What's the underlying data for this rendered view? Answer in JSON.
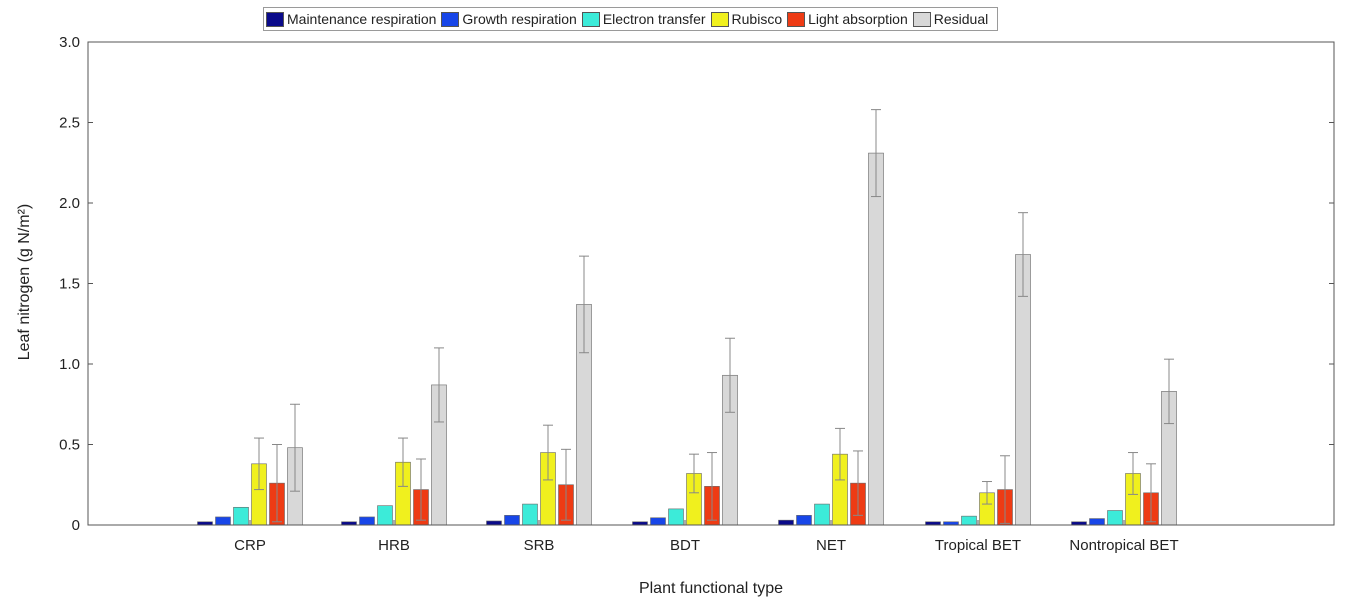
{
  "chart_data": {
    "type": "bar",
    "xlabel": "Plant functional type",
    "ylabel": "Leaf nitrogen (g N/m²)",
    "ylim": [
      0,
      3.0
    ],
    "yticks": [
      "0",
      "0.5",
      "1.0",
      "1.5",
      "2.0",
      "2.5",
      "3.0"
    ],
    "legend_position": "top-center",
    "error_bars": true,
    "categories": [
      "CRP",
      "HRB",
      "SRB",
      "BDT",
      "NET",
      "Tropical BET",
      "Nontropical BET"
    ],
    "series": [
      {
        "name": "Maintenance respiration",
        "color": "#0a0a8a",
        "values": [
          0.02,
          0.02,
          0.025,
          0.02,
          0.03,
          0.02,
          0.02
        ],
        "errors": [
          0,
          0,
          0,
          0,
          0,
          0,
          0
        ]
      },
      {
        "name": "Growth respiration",
        "color": "#1846e8",
        "values": [
          0.05,
          0.05,
          0.06,
          0.045,
          0.06,
          0.02,
          0.04
        ],
        "errors": [
          0,
          0,
          0,
          0,
          0,
          0,
          0
        ]
      },
      {
        "name": "Electron transfer",
        "color": "#3cebd9",
        "values": [
          0.11,
          0.12,
          0.13,
          0.1,
          0.13,
          0.055,
          0.09
        ],
        "errors": [
          0,
          0,
          0,
          0,
          0,
          0,
          0
        ]
      },
      {
        "name": "Rubisco",
        "color": "#f0f01e",
        "values": [
          0.38,
          0.39,
          0.45,
          0.32,
          0.44,
          0.2,
          0.32
        ],
        "errors": [
          0.16,
          0.15,
          0.17,
          0.12,
          0.16,
          0.07,
          0.13
        ]
      },
      {
        "name": "Light absorption",
        "color": "#ee3b14",
        "values": [
          0.26,
          0.22,
          0.25,
          0.24,
          0.26,
          0.22,
          0.2
        ],
        "errors": [
          0.24,
          0.19,
          0.22,
          0.21,
          0.2,
          0.21,
          0.18
        ]
      },
      {
        "name": "Residual",
        "color": "#d8d8d8",
        "values": [
          0.48,
          0.87,
          1.37,
          0.93,
          2.31,
          1.68,
          0.83
        ],
        "errors": [
          0.27,
          0.23,
          0.3,
          0.23,
          0.27,
          0.26,
          0.2
        ]
      }
    ]
  }
}
